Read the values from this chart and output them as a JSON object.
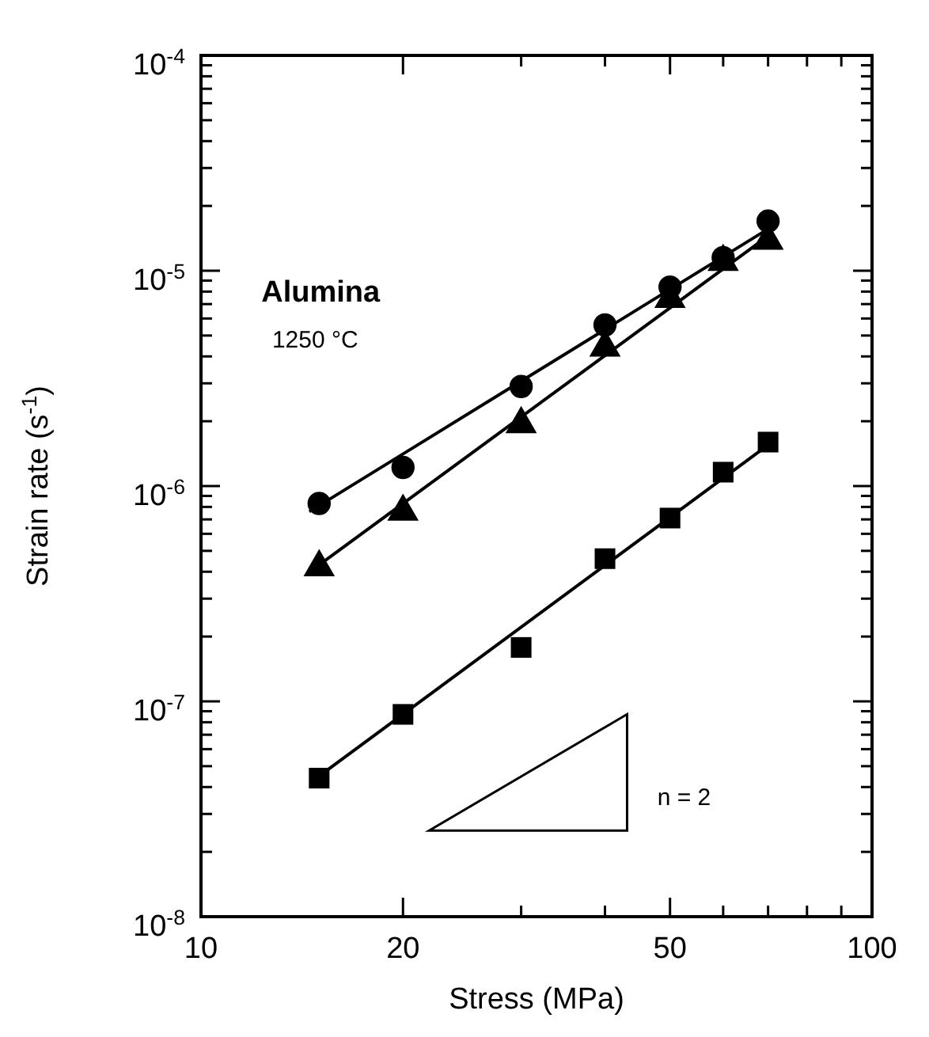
{
  "chart_data": {
    "type": "scatter",
    "xlabel": "Stress (MPa)",
    "ylabel": "Strain rate (s$^{-1}$)",
    "log": "xy",
    "xlim": [
      10,
      100
    ],
    "ylim": [
      1e-08,
      0.0001
    ],
    "xticks": [
      10,
      20,
      {
        "value": 30,
        "label": null
      },
      {
        "value": 40,
        "label": null
      },
      50,
      {
        "value": 60,
        "label": null
      },
      {
        "value": 70,
        "label": null
      },
      {
        "value": 80,
        "label": null
      },
      {
        "value": 90,
        "label": null
      },
      100
    ],
    "yticks": [
      {
        "value": 1e-08,
        "label": "10$^{-8}$"
      },
      {
        "value": 2e-08,
        "label": null
      },
      {
        "value": 3e-08,
        "label": null
      },
      {
        "value": 4e-08,
        "label": null
      },
      {
        "value": 5e-08,
        "label": null
      },
      {
        "value": 6e-08,
        "label": null
      },
      {
        "value": 7e-08,
        "label": null
      },
      {
        "value": 8e-08,
        "label": null
      },
      {
        "value": 9e-08,
        "label": null
      },
      {
        "value": 1e-07,
        "label": "10$^{-7}$"
      },
      {
        "value": 2e-07,
        "label": null
      },
      {
        "value": 3e-07,
        "label": null
      },
      {
        "value": 4e-07,
        "label": null
      },
      {
        "value": 5e-07,
        "label": null
      },
      {
        "value": 6e-07,
        "label": null
      },
      {
        "value": 7e-07,
        "label": null
      },
      {
        "value": 8e-07,
        "label": null
      },
      {
        "value": 9e-07,
        "label": null
      },
      {
        "value": 1e-06,
        "label": "10$^{-6}$"
      },
      {
        "value": 2e-06,
        "label": null
      },
      {
        "value": 3e-06,
        "label": null
      },
      {
        "value": 4e-06,
        "label": null
      },
      {
        "value": 5e-06,
        "label": null
      },
      {
        "value": 6e-06,
        "label": null
      },
      {
        "value": 7e-06,
        "label": null
      },
      {
        "value": 8e-06,
        "label": null
      },
      {
        "value": 9e-06,
        "label": null
      },
      {
        "value": 1e-05,
        "label": "10$^{-5}$"
      },
      {
        "value": 2e-05,
        "label": null
      },
      {
        "value": 3e-05,
        "label": null
      },
      {
        "value": 4e-05,
        "label": null
      },
      {
        "value": 5e-05,
        "label": null
      },
      {
        "value": 6e-05,
        "label": null
      },
      {
        "value": 7e-05,
        "label": null
      },
      {
        "value": 8e-05,
        "label": null
      },
      {
        "value": 9e-05,
        "label": null
      },
      {
        "value": 0.0001,
        "label": "10$^{-4}$"
      }
    ],
    "grid": false,
    "annotations": [
      "Alumina",
      "1250 °C",
      "n = 2"
    ],
    "x": [
      15,
      20,
      30,
      40,
      50,
      60,
      70
    ],
    "series": [
      {
        "marker": "circle",
        "color": "#000000",
        "values": [
          8.3e-07,
          1.22e-06,
          2.9e-06,
          5.6e-06,
          8.4e-06,
          1.15e-05,
          1.7e-05
        ]
      },
      {
        "marker": "triangle",
        "color": "#000000",
        "values": [
          4.2e-07,
          7.6e-07,
          1.94e-06,
          4.4e-06,
          7.4e-06,
          1.1e-05,
          1.38e-05
        ]
      },
      {
        "marker": "square",
        "color": "#000000",
        "values": [
          4.4e-08,
          8.7e-08,
          1.78e-07,
          4.6e-07,
          7.1e-07,
          1.16e-06,
          1.6e-06
        ]
      },
      {
        "type": "line",
        "x": [
          14.5,
          72
        ],
        "color": "#000000",
        "values": [
          7.6e-07,
          1.65e-05
        ]
      },
      {
        "type": "line",
        "x": [
          15,
          70
        ],
        "color": "#000000",
        "values": [
          4.3e-07,
          1.45e-05
        ]
      },
      {
        "type": "line",
        "x": [
          15,
          70
        ],
        "color": "#000000",
        "values": [
          4.5e-08,
          1.55e-06
        ]
      }
    ]
  }
}
